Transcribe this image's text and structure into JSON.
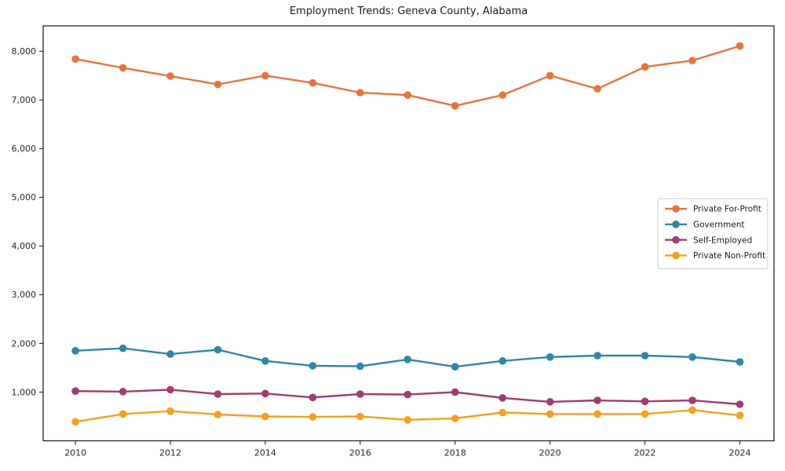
{
  "chart_data": {
    "type": "line",
    "title": "Employment Trends: Geneva County, Alabama",
    "xlabel": "",
    "ylabel": "",
    "grid": false,
    "marker": "circle",
    "legend_position": "right",
    "axis_color": "#262626",
    "text_color": "#262626",
    "legend_border_color": "#cccccc",
    "background_color": "#ffffff",
    "x": [
      2010,
      2011,
      2012,
      2013,
      2014,
      2015,
      2016,
      2017,
      2018,
      2019,
      2020,
      2021,
      2022,
      2023,
      2024
    ],
    "xticks": [
      2010,
      2012,
      2014,
      2016,
      2018,
      2020,
      2022,
      2024
    ],
    "yticks": [
      1000,
      2000,
      3000,
      4000,
      5000,
      6000,
      7000,
      8000
    ],
    "ytick_labels": [
      "1,000",
      "2,000",
      "3,000",
      "4,000",
      "5,000",
      "6,000",
      "7,000",
      "8,000"
    ],
    "xlim": [
      2009.32,
      2024.72
    ],
    "ylim": [
      0,
      8521
    ],
    "series": [
      {
        "name": "Private For-Profit",
        "color": "#E8743B",
        "values": [
          7840,
          7660,
          7490,
          7320,
          7500,
          7350,
          7150,
          7100,
          6880,
          7100,
          7500,
          7230,
          7680,
          7810,
          8110
        ]
      },
      {
        "name": "Government",
        "color": "#2E86A8",
        "values": [
          1850,
          1900,
          1780,
          1870,
          1640,
          1540,
          1530,
          1670,
          1520,
          1640,
          1720,
          1750,
          1750,
          1720,
          1620
        ]
      },
      {
        "name": "Self-Employed",
        "color": "#A23B72",
        "values": [
          1020,
          1010,
          1050,
          960,
          970,
          890,
          960,
          950,
          1000,
          880,
          800,
          830,
          810,
          830,
          750
        ]
      },
      {
        "name": "Private Non-Profit",
        "color": "#F5A01E",
        "values": [
          390,
          550,
          610,
          540,
          500,
          490,
          500,
          430,
          460,
          580,
          550,
          550,
          550,
          630,
          520
        ]
      }
    ]
  }
}
